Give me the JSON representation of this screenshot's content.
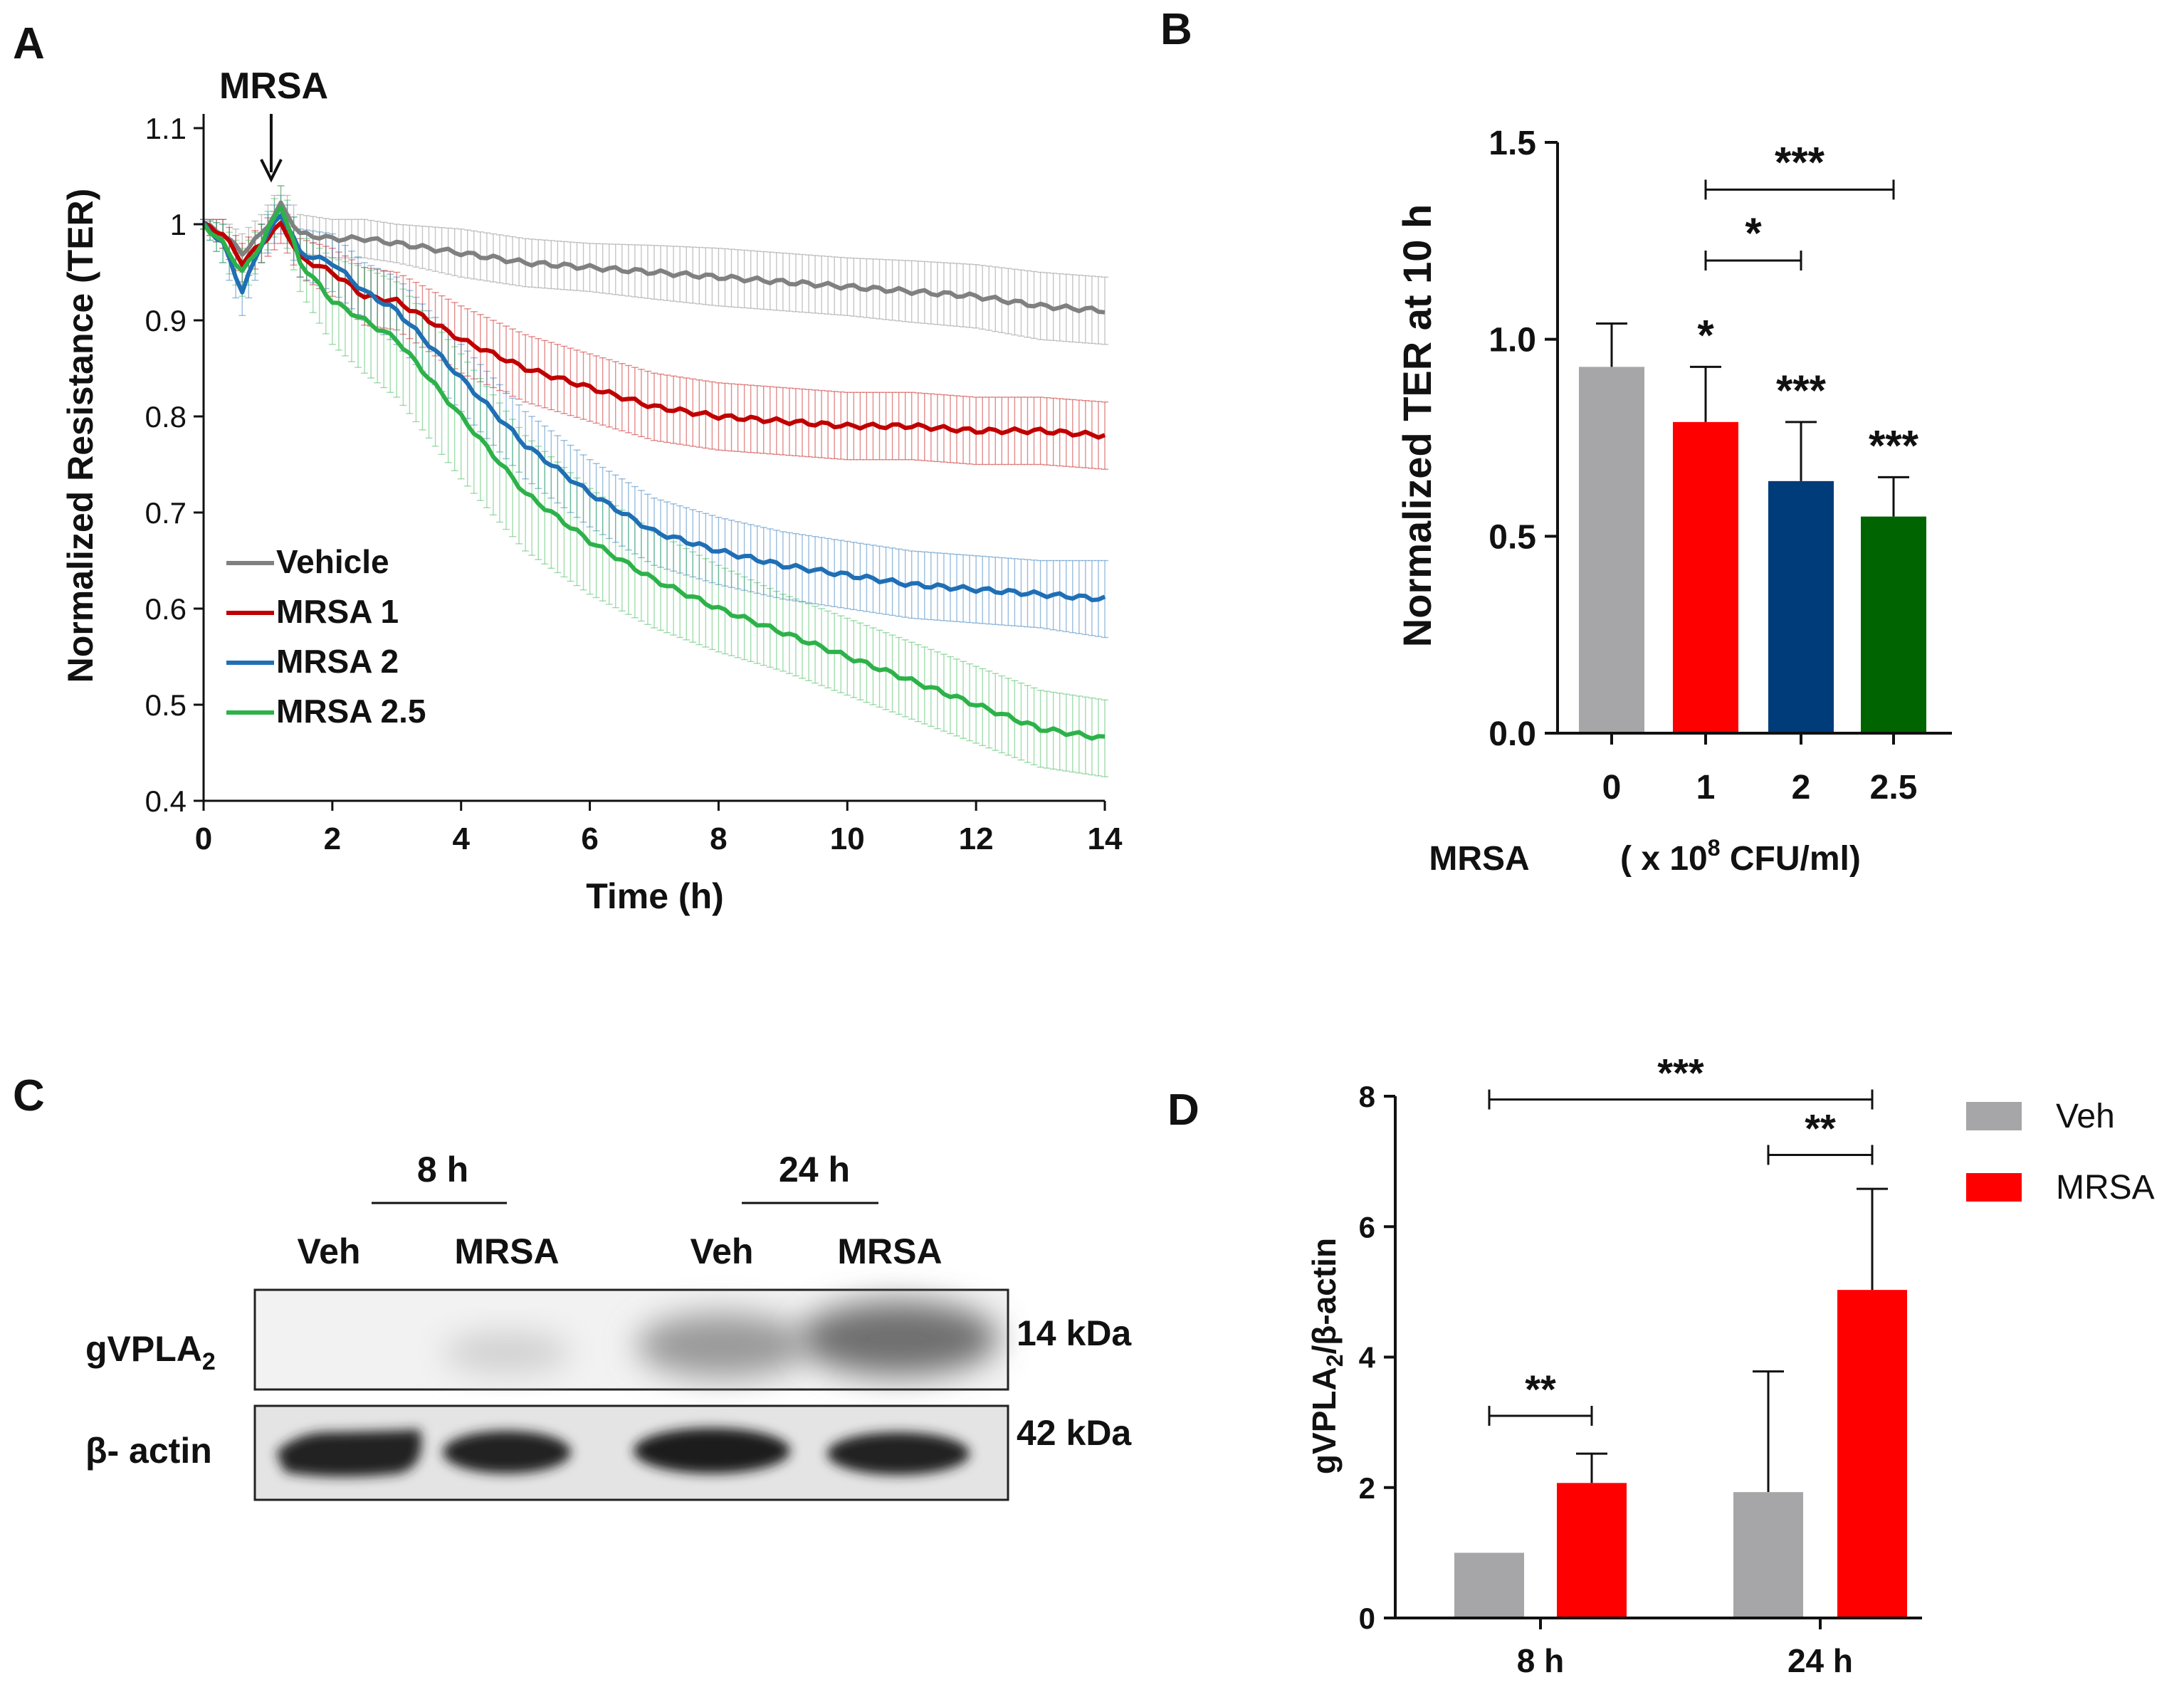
{
  "colors": {
    "vehicle": "#808080",
    "mrsa1": "#c00000",
    "mrsa2": "#1f6fb5",
    "mrsa25": "#2db24a",
    "bar_grey": "#a6a6a8",
    "bar_red": "#ff0000",
    "bar_blue": "#003b7a",
    "bar_green": "#006400",
    "axis": "#111111"
  },
  "chart_data": [
    {
      "panel": "A",
      "type": "line",
      "annotation": "MRSA",
      "annotation_time": 1.05,
      "xlabel": "Time (h)",
      "ylabel": "Normalized Resistance (TER)",
      "xlim": [
        0,
        14
      ],
      "ylim": [
        0.4,
        1.1
      ],
      "xticks": [
        "0",
        "2",
        "4",
        "6",
        "8",
        "10",
        "12",
        "14"
      ],
      "yticks": [
        "0.4",
        "0.5",
        "0.6",
        "0.7",
        "0.8",
        "0.9",
        "1",
        "1.1"
      ],
      "legend_position": "bottom-left",
      "x": [
        0,
        0.3,
        0.6,
        0.9,
        1.2,
        1.3,
        1.5,
        2,
        2.5,
        3,
        4,
        5,
        6,
        7,
        8,
        9,
        10,
        11,
        12,
        13,
        14
      ],
      "series": [
        {
          "name": "Vehicle",
          "values": [
            1.0,
            0.99,
            0.97,
            0.99,
            1.02,
            1.01,
            0.99,
            0.985,
            0.985,
            0.98,
            0.97,
            0.96,
            0.955,
            0.95,
            0.945,
            0.94,
            0.935,
            0.93,
            0.925,
            0.915,
            0.91
          ],
          "error": [
            0.005,
            0.015,
            0.02,
            0.02,
            0.02,
            0.02,
            0.02,
            0.02,
            0.02,
            0.02,
            0.025,
            0.025,
            0.025,
            0.028,
            0.03,
            0.03,
            0.03,
            0.032,
            0.033,
            0.035,
            0.035
          ]
        },
        {
          "name": "MRSA 1",
          "values": [
            1.0,
            0.99,
            0.96,
            0.98,
            1.0,
            0.99,
            0.965,
            0.95,
            0.925,
            0.92,
            0.88,
            0.85,
            0.83,
            0.81,
            0.8,
            0.795,
            0.79,
            0.79,
            0.785,
            0.785,
            0.78
          ],
          "error": [
            0.005,
            0.015,
            0.02,
            0.02,
            0.02,
            0.02,
            0.02,
            0.025,
            0.03,
            0.03,
            0.035,
            0.035,
            0.035,
            0.035,
            0.035,
            0.035,
            0.035,
            0.035,
            0.035,
            0.035,
            0.035
          ]
        },
        {
          "name": "MRSA 2",
          "values": [
            1.0,
            0.98,
            0.93,
            0.98,
            1.01,
            1.0,
            0.97,
            0.96,
            0.93,
            0.91,
            0.84,
            0.77,
            0.72,
            0.68,
            0.66,
            0.645,
            0.635,
            0.625,
            0.62,
            0.615,
            0.61
          ],
          "error": [
            0.005,
            0.02,
            0.025,
            0.02,
            0.02,
            0.02,
            0.025,
            0.03,
            0.03,
            0.035,
            0.035,
            0.035,
            0.035,
            0.035,
            0.035,
            0.035,
            0.035,
            0.035,
            0.035,
            0.035,
            0.04
          ]
        },
        {
          "name": "MRSA 2.5",
          "values": [
            1.0,
            0.98,
            0.95,
            0.98,
            1.02,
            1.0,
            0.96,
            0.92,
            0.9,
            0.88,
            0.8,
            0.72,
            0.67,
            0.63,
            0.6,
            0.575,
            0.55,
            0.525,
            0.5,
            0.475,
            0.465
          ],
          "error": [
            0.005,
            0.02,
            0.025,
            0.02,
            0.02,
            0.025,
            0.03,
            0.045,
            0.055,
            0.06,
            0.065,
            0.06,
            0.055,
            0.05,
            0.045,
            0.04,
            0.04,
            0.04,
            0.04,
            0.04,
            0.04
          ]
        }
      ]
    },
    {
      "panel": "B",
      "type": "bar",
      "ylabel": "Normalized TER at 10 h",
      "ylim": [
        0,
        1.5
      ],
      "yticks": [
        "0.0",
        "0.5",
        "1.0",
        "1.5"
      ],
      "categories": [
        "0",
        "1",
        "2",
        "2.5"
      ],
      "values": [
        0.93,
        0.79,
        0.64,
        0.55
      ],
      "errors": [
        0.11,
        0.14,
        0.15,
        0.1
      ],
      "bar_significance": [
        "",
        "*",
        "***",
        "***"
      ],
      "comparisons": [
        {
          "from": "1",
          "to": "2",
          "label": "*",
          "y": 1.2
        },
        {
          "from": "1",
          "to": "2.5",
          "label": "***",
          "y": 1.38
        }
      ],
      "x_title": "MRSA",
      "x_units_prefix": "( x 10",
      "x_units_exponent": "8",
      "x_units_suffix": " CFU/ml)"
    },
    {
      "panel": "D",
      "type": "bar",
      "ylabel_prefix": "gVPLA",
      "ylabel_sub": "2",
      "ylabel_suffix": "/β-actin",
      "ylim": [
        0,
        8
      ],
      "yticks": [
        "0",
        "2",
        "4",
        "6",
        "8"
      ],
      "categories": [
        "8 h",
        "24 h"
      ],
      "series": [
        {
          "name": "Veh",
          "values": [
            1.0,
            1.93
          ],
          "errors": [
            0,
            1.85
          ]
        },
        {
          "name": "MRSA",
          "values": [
            2.07,
            5.03
          ],
          "errors": [
            0.45,
            1.55
          ]
        }
      ],
      "comparisons": [
        {
          "from": "8 h Veh",
          "to": "8 h MRSA",
          "label": "**",
          "y": 3.1
        },
        {
          "from": "24 h Veh",
          "to": "24 h MRSA",
          "label": "**",
          "y": 7.1
        },
        {
          "from": "8 h Veh",
          "to": "24 h MRSA",
          "label": "***",
          "y": 7.95
        }
      ],
      "legend_position": "top-right"
    }
  ],
  "panels": {
    "a": {
      "label": "A"
    },
    "b": {
      "label": "B"
    },
    "c": {
      "label": "C",
      "group_8h": "8 h",
      "group_24h": "24 h",
      "lanes": [
        "Veh",
        "MRSA",
        "Veh",
        "MRSA"
      ],
      "row1_prefix": "gVPLA",
      "row1_sub": "2",
      "row2": "β- actin",
      "row1_kda": "14 kDa",
      "row2_kda": "42 kDa"
    },
    "d": {
      "label": "D"
    }
  }
}
